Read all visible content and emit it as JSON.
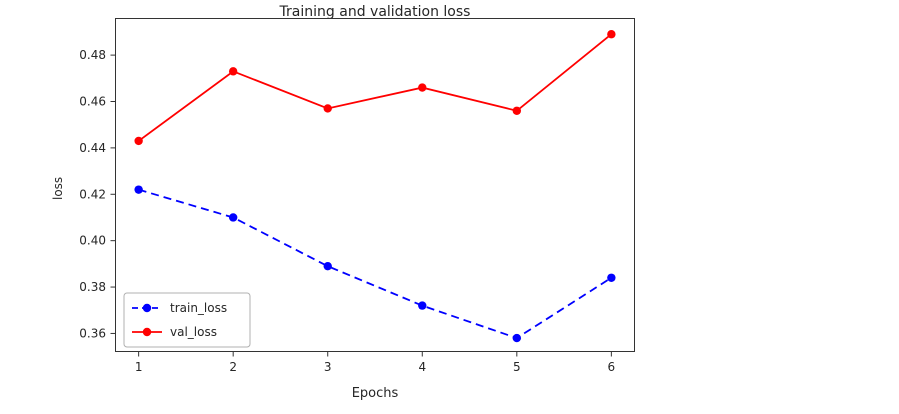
{
  "chart_data": {
    "type": "line",
    "title": "Training and validation loss",
    "xlabel": "Epochs",
    "ylabel": "loss",
    "x": [
      1,
      2,
      3,
      4,
      5,
      6
    ],
    "xticks": [
      1,
      2,
      3,
      4,
      5,
      6
    ],
    "yticks": [
      0.36,
      0.38,
      0.4,
      0.42,
      0.44,
      0.46,
      0.48
    ],
    "xlim": [
      0.75,
      6.25
    ],
    "ylim": [
      0.352,
      0.496
    ],
    "grid": false,
    "legend_position": "lower left",
    "series": [
      {
        "name": "train_loss",
        "color": "#0000ff",
        "style": "dashed",
        "marker": "circle",
        "values": [
          0.422,
          0.41,
          0.389,
          0.372,
          0.358,
          0.384
        ]
      },
      {
        "name": "val_loss",
        "color": "#ff0000",
        "style": "solid",
        "marker": "circle",
        "values": [
          0.443,
          0.473,
          0.457,
          0.466,
          0.456,
          0.489
        ]
      }
    ]
  }
}
